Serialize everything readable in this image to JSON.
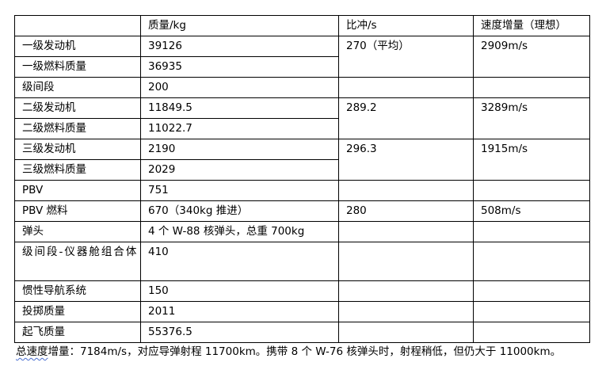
{
  "headers": [
    "",
    "质量/kg",
    "比冲/s",
    "速度增量（理想）"
  ],
  "rows": [
    {
      "name": "一级发动机",
      "mass": "39126"
    },
    {
      "name": "一级燃料质量",
      "mass": "36935"
    },
    {
      "name": "级间段",
      "mass": "200"
    },
    {
      "name": "二级发动机",
      "mass": "11849.5"
    },
    {
      "name": "二级燃料质量",
      "mass": "11022.7"
    },
    {
      "name": "三级发动机",
      "mass": "2190"
    },
    {
      "name": "三级燃料质量",
      "mass": "2029"
    },
    {
      "name": "PBV",
      "mass": "751"
    },
    {
      "name": "PBV 燃料",
      "mass": "670（340kg 推进）"
    },
    {
      "name": "弹头",
      "mass": "4 个 W-88 核弹头，总重 700kg"
    },
    {
      "name": "级间段-仪器舱组合体",
      "mass": "410"
    },
    {
      "name": "惯性导航系统",
      "mass": "150"
    },
    {
      "name": "投掷质量",
      "mass": "2011"
    },
    {
      "name": "起飞质量",
      "mass": "55376.5"
    }
  ],
  "stages": [
    {
      "isp": "270（平均）",
      "dv": "2909m/s"
    },
    {
      "isp": "289.2",
      "dv": "3289m/s"
    },
    {
      "isp": "296.3",
      "dv": "1915m/s"
    },
    {
      "isp": "280",
      "dv": "508m/s"
    }
  ],
  "note": {
    "underlined": "总速度",
    "text": "增量：7184m/s，对应导弹射程 11700km。携带 8 个 W-76 核弹头时，射程稍低，但仍大于 11000km。"
  }
}
